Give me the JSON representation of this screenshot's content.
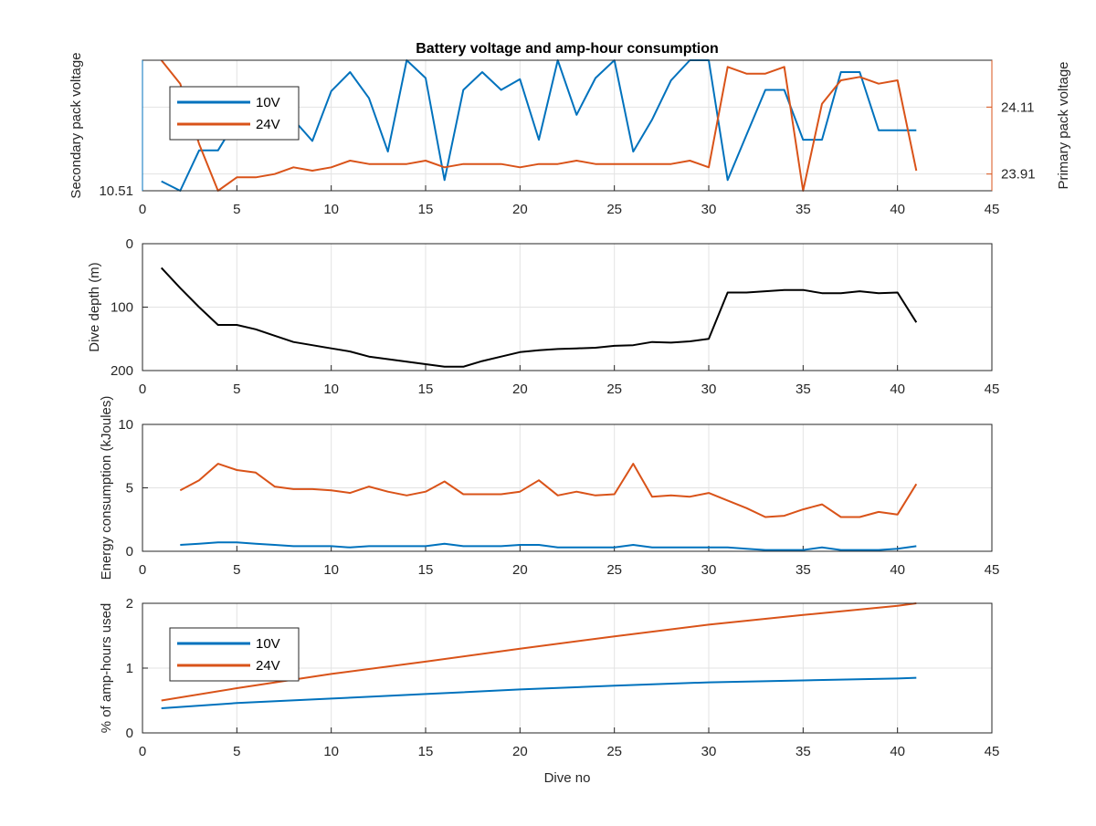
{
  "title": "Battery voltage and amp-hour consumption",
  "colors": {
    "blue": "#0072BD",
    "orange": "#D95319",
    "black": "#000000"
  },
  "chart_data": [
    {
      "id": "voltage",
      "type": "line",
      "xlim": [
        0,
        45
      ],
      "xticks": [
        "0",
        "5",
        "10",
        "15",
        "20",
        "25",
        "30",
        "35",
        "40",
        "45"
      ],
      "ylabel_left": "Secondary pack voltage",
      "ylabel_right": "Primary pack voltage",
      "yticks_left": [
        "10.51"
      ],
      "yticks_right": [
        "24.11",
        "23.91"
      ],
      "ylim_left": [
        10.51,
        10.62
      ],
      "ylim_right": [
        23.86,
        24.25
      ],
      "legend": [
        "10V",
        "24V"
      ],
      "series": [
        {
          "name": "10V",
          "axis": "left",
          "color": "blue",
          "x": [
            1,
            2,
            3,
            4,
            5,
            6,
            7,
            8,
            9,
            10,
            11,
            12,
            13,
            14,
            15,
            16,
            17,
            18,
            19,
            20,
            21,
            22,
            23,
            24,
            25,
            26,
            27,
            28,
            29,
            30,
            31,
            32,
            33,
            34,
            35,
            36,
            37,
            38,
            39,
            40,
            41
          ],
          "y": [
            10.518,
            10.51,
            10.544,
            10.544,
            10.57,
            10.57,
            10.57,
            10.57,
            10.552,
            10.594,
            10.61,
            10.588,
            10.543,
            10.62,
            10.605,
            10.519,
            10.595,
            10.61,
            10.595,
            10.604,
            10.553,
            10.62,
            10.574,
            10.605,
            10.62,
            10.543,
            10.57,
            10.603,
            10.62,
            10.62,
            10.519,
            10.557,
            10.595,
            10.595,
            10.553,
            10.553,
            10.61,
            10.61,
            10.561,
            10.561,
            10.561
          ]
        },
        {
          "name": "24V",
          "axis": "right",
          "color": "orange",
          "x": [
            1,
            2,
            3,
            4,
            5,
            6,
            7,
            8,
            9,
            10,
            11,
            12,
            13,
            14,
            15,
            16,
            17,
            18,
            19,
            20,
            21,
            22,
            23,
            24,
            25,
            26,
            27,
            28,
            29,
            30,
            31,
            32,
            33,
            34,
            35,
            36,
            37,
            38,
            39,
            40,
            41
          ],
          "y": [
            24.25,
            24.18,
            24.0,
            23.86,
            23.9,
            23.9,
            23.91,
            23.93,
            23.92,
            23.93,
            23.95,
            23.94,
            23.94,
            23.94,
            23.95,
            23.93,
            23.94,
            23.94,
            23.94,
            23.93,
            23.94,
            23.94,
            23.95,
            23.94,
            23.94,
            23.94,
            23.94,
            23.94,
            23.95,
            23.93,
            24.23,
            24.21,
            24.21,
            24.23,
            23.86,
            24.12,
            24.19,
            24.2,
            24.18,
            24.19,
            23.92
          ]
        }
      ]
    },
    {
      "id": "depth",
      "type": "line",
      "xlim": [
        0,
        45
      ],
      "xticks": [
        "0",
        "5",
        "10",
        "15",
        "20",
        "25",
        "30",
        "35",
        "40",
        "45"
      ],
      "ylabel": "Dive depth (m)",
      "ylim": [
        0,
        200
      ],
      "y_reversed": true,
      "yticks": [
        "0",
        "100",
        "200"
      ],
      "series": [
        {
          "name": "",
          "color": "black",
          "x": [
            1,
            2,
            3,
            4,
            5,
            6,
            7,
            8,
            9,
            10,
            11,
            12,
            13,
            14,
            15,
            16,
            17,
            18,
            19,
            20,
            21,
            22,
            23,
            24,
            25,
            26,
            27,
            28,
            29,
            30,
            31,
            32,
            33,
            34,
            35,
            36,
            37,
            38,
            39,
            40,
            41
          ],
          "y": [
            38,
            70,
            100,
            128,
            128,
            135,
            145,
            155,
            160,
            165,
            170,
            178,
            182,
            186,
            190,
            194,
            194,
            185,
            178,
            171,
            168,
            166,
            165,
            164,
            161,
            160,
            155,
            156,
            154,
            150,
            77,
            77,
            75,
            73,
            73,
            78,
            78,
            75,
            78,
            77,
            124
          ]
        }
      ]
    },
    {
      "id": "energy",
      "type": "line",
      "xlim": [
        0,
        45
      ],
      "xticks": [
        "0",
        "5",
        "10",
        "15",
        "20",
        "25",
        "30",
        "35",
        "40",
        "45"
      ],
      "ylabel": "Energy consumption (kJoules)",
      "ylim": [
        0,
        10
      ],
      "yticks": [
        "0",
        "5",
        "10"
      ],
      "series": [
        {
          "name": "24V",
          "color": "orange",
          "x": [
            2,
            3,
            4,
            5,
            6,
            7,
            8,
            9,
            10,
            11,
            12,
            13,
            14,
            15,
            16,
            17,
            18,
            19,
            20,
            21,
            22,
            23,
            24,
            25,
            26,
            27,
            28,
            29,
            30,
            31,
            32,
            33,
            34,
            35,
            36,
            37,
            38,
            39,
            40,
            41
          ],
          "y": [
            4.8,
            5.6,
            6.9,
            6.4,
            6.2,
            5.1,
            4.9,
            4.9,
            4.8,
            4.6,
            5.1,
            4.7,
            4.4,
            4.7,
            5.5,
            4.5,
            4.5,
            4.5,
            4.7,
            5.6,
            4.4,
            4.7,
            4.4,
            4.5,
            6.9,
            4.3,
            4.4,
            4.3,
            4.6,
            4.0,
            3.4,
            2.7,
            2.8,
            3.3,
            3.7,
            2.7,
            2.7,
            3.1,
            2.9,
            5.3
          ]
        },
        {
          "name": "10V",
          "color": "blue",
          "x": [
            2,
            3,
            4,
            5,
            6,
            7,
            8,
            9,
            10,
            11,
            12,
            13,
            14,
            15,
            16,
            17,
            18,
            19,
            20,
            21,
            22,
            23,
            24,
            25,
            26,
            27,
            28,
            29,
            30,
            31,
            32,
            33,
            34,
            35,
            36,
            37,
            38,
            39,
            40,
            41
          ],
          "y": [
            0.5,
            0.6,
            0.7,
            0.7,
            0.6,
            0.5,
            0.4,
            0.4,
            0.4,
            0.3,
            0.4,
            0.4,
            0.4,
            0.4,
            0.6,
            0.4,
            0.4,
            0.4,
            0.5,
            0.5,
            0.3,
            0.3,
            0.3,
            0.3,
            0.5,
            0.3,
            0.3,
            0.3,
            0.3,
            0.3,
            0.2,
            0.1,
            0.1,
            0.1,
            0.3,
            0.1,
            0.1,
            0.1,
            0.2,
            0.4
          ]
        }
      ]
    },
    {
      "id": "amphours",
      "type": "line",
      "xlim": [
        0,
        45
      ],
      "xticks": [
        "0",
        "5",
        "10",
        "15",
        "20",
        "25",
        "30",
        "35",
        "40",
        "45"
      ],
      "xlabel": "Dive no",
      "ylabel": "% of amp-hours used",
      "ylim": [
        0,
        2
      ],
      "yticks": [
        "0",
        "1",
        "2"
      ],
      "legend": [
        "10V",
        "24V"
      ],
      "series": [
        {
          "name": "10V",
          "color": "blue",
          "x": [
            1,
            5,
            10,
            15,
            20,
            25,
            30,
            35,
            40,
            41
          ],
          "y": [
            0.38,
            0.46,
            0.53,
            0.6,
            0.67,
            0.73,
            0.78,
            0.81,
            0.84,
            0.85
          ]
        },
        {
          "name": "24V",
          "color": "orange",
          "x": [
            1,
            5,
            10,
            15,
            20,
            25,
            30,
            35,
            40,
            41
          ],
          "y": [
            0.5,
            0.69,
            0.91,
            1.1,
            1.3,
            1.49,
            1.67,
            1.82,
            1.96,
            2.0
          ]
        }
      ]
    }
  ]
}
